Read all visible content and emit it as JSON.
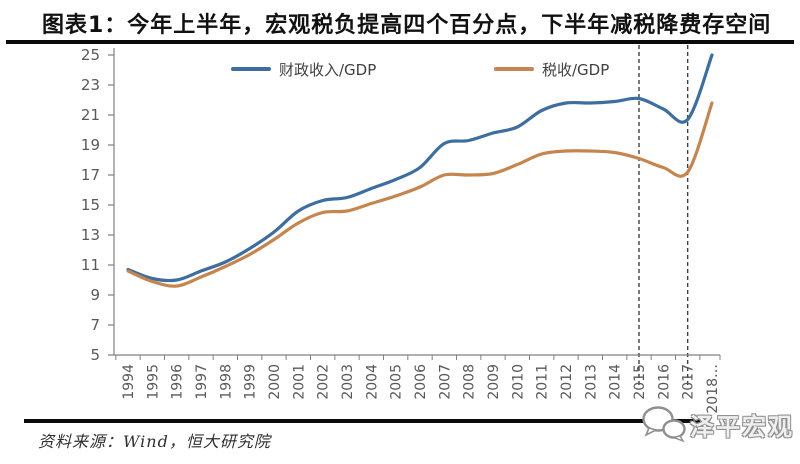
{
  "header": {
    "title": "图表1：今年上半年，宏观税负提高四个百分点，下半年减税降费存空间"
  },
  "footer": {
    "source": "资料来源：Wind，恒大研究院",
    "watermark": "泽平宏观",
    "watermark_icon": "chat-bubbles-icon"
  },
  "chart_data": {
    "type": "line",
    "title": "",
    "x": [
      "1994",
      "1995",
      "1996",
      "1997",
      "1998",
      "1999",
      "2000",
      "2001",
      "2002",
      "2003",
      "2004",
      "2005",
      "2006",
      "2007",
      "2008",
      "2009",
      "2010",
      "2011",
      "2012",
      "2013",
      "2014",
      "2015",
      "2016",
      "2017",
      "2018…"
    ],
    "series": [
      {
        "name": "财政收入/GDP",
        "color": "#3e6d9f",
        "values": [
          10.7,
          10.1,
          10.0,
          10.6,
          11.2,
          12.1,
          13.2,
          14.6,
          15.3,
          15.5,
          16.1,
          16.7,
          17.5,
          19.1,
          19.3,
          19.8,
          20.2,
          21.3,
          21.8,
          21.8,
          21.9,
          22.1,
          21.4,
          20.7,
          25.0
        ]
      },
      {
        "name": "税收/GDP",
        "color": "#c5854f",
        "values": [
          10.6,
          9.9,
          9.6,
          10.2,
          10.9,
          11.7,
          12.7,
          13.8,
          14.5,
          14.6,
          15.1,
          15.6,
          16.2,
          17.0,
          17.0,
          17.1,
          17.7,
          18.4,
          18.6,
          18.6,
          18.5,
          18.1,
          17.5,
          17.2,
          21.8
        ]
      }
    ],
    "ylim": [
      5,
      25
    ],
    "y_ticks": [
      25,
      23,
      21,
      19,
      17,
      15,
      13,
      11,
      9,
      7,
      5
    ],
    "grid": false,
    "legend_position": "top-center",
    "dashed_vlines_at": [
      "2015",
      "2017"
    ],
    "axis_color": "#808080",
    "tick_label_color": "#595959",
    "dashed_line_color": "#404040"
  }
}
